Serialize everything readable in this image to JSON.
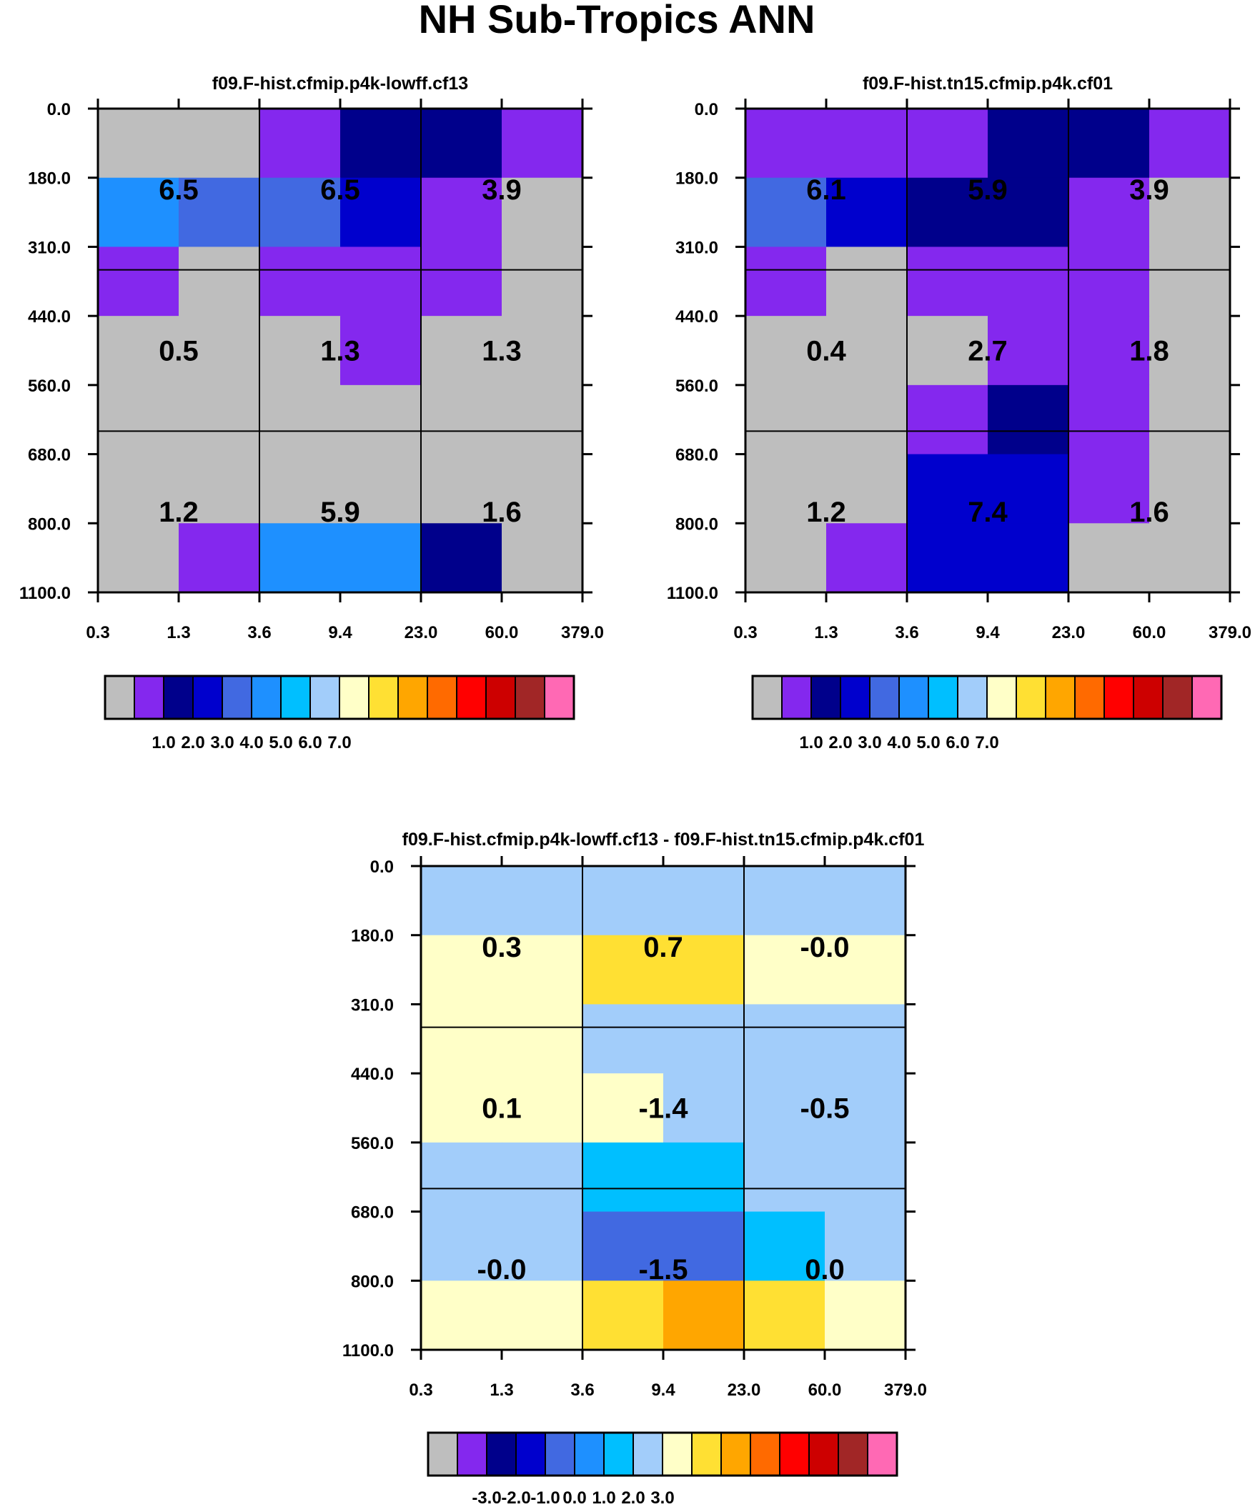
{
  "title": "NH Sub-Tropics ANN",
  "colors": {
    "palette": [
      "#bebebe",
      "#8428ee",
      "#00008b",
      "#0000cd",
      "#4169e1",
      "#1e90ff",
      "#00bfff",
      "#a2cdfa",
      "#ffffc8",
      "#ffe033",
      "#ffa600",
      "#ff6a00",
      "#ff0000",
      "#cd0000",
      "#a12626",
      "#ff69b4"
    ]
  },
  "chart_data": [
    {
      "type": "heatmap",
      "title": "f09.F-hist.cfmip.p4k-lowff.cf13",
      "x_ticks": [
        "0.3",
        "1.3",
        "3.6",
        "9.4",
        "23.0",
        "60.0",
        "379.0"
      ],
      "y_ticks": [
        "0.0",
        "180.0",
        "310.0",
        "440.0",
        "560.0",
        "680.0",
        "800.0",
        "1100.0"
      ],
      "cells": [
        [
          0,
          0,
          1,
          2,
          2,
          1
        ],
        [
          5,
          4,
          4,
          3,
          1,
          0
        ],
        [
          1,
          0,
          1,
          1,
          1,
          0
        ],
        [
          0,
          0,
          0,
          1,
          0,
          0
        ],
        [
          0,
          0,
          0,
          0,
          0,
          0
        ],
        [
          0,
          0,
          0,
          0,
          0,
          0
        ],
        [
          0,
          1,
          5,
          5,
          2,
          0
        ]
      ],
      "box_values": [
        [
          "6.5",
          "6.5",
          "3.9"
        ],
        [
          "0.5",
          "1.3",
          "1.3"
        ],
        [
          "1.2",
          "5.9",
          "1.6"
        ]
      ],
      "colorbar_labels": [
        "1.0",
        "2.0",
        "3.0",
        "4.0",
        "5.0",
        "6.0",
        "7.0"
      ]
    },
    {
      "type": "heatmap",
      "title": "f09.F-hist.tn15.cfmip.p4k.cf01",
      "x_ticks": [
        "0.3",
        "1.3",
        "3.6",
        "9.4",
        "23.0",
        "60.0",
        "379.0"
      ],
      "y_ticks": [
        "0.0",
        "180.0",
        "310.0",
        "440.0",
        "560.0",
        "680.0",
        "800.0",
        "1100.0"
      ],
      "cells": [
        [
          1,
          1,
          1,
          2,
          2,
          1
        ],
        [
          4,
          3,
          2,
          2,
          1,
          0
        ],
        [
          1,
          0,
          1,
          1,
          1,
          0
        ],
        [
          0,
          0,
          0,
          1,
          1,
          0
        ],
        [
          0,
          0,
          1,
          2,
          1,
          0
        ],
        [
          0,
          0,
          3,
          3,
          1,
          0
        ],
        [
          0,
          1,
          3,
          3,
          0,
          0
        ]
      ],
      "box_values": [
        [
          "6.1",
          "5.9",
          "3.9"
        ],
        [
          "0.4",
          "2.7",
          "1.8"
        ],
        [
          "1.2",
          "7.4",
          "1.6"
        ]
      ],
      "colorbar_labels": [
        "1.0",
        "2.0",
        "3.0",
        "4.0",
        "5.0",
        "6.0",
        "7.0"
      ]
    },
    {
      "type": "heatmap",
      "title": "f09.F-hist.cfmip.p4k-lowff.cf13 - f09.F-hist.tn15.cfmip.p4k.cf01",
      "x_ticks": [
        "0.3",
        "1.3",
        "3.6",
        "9.4",
        "23.0",
        "60.0",
        "379.0"
      ],
      "y_ticks": [
        "0.0",
        "180.0",
        "310.0",
        "440.0",
        "560.0",
        "680.0",
        "800.0",
        "1100.0"
      ],
      "cells": [
        [
          7,
          7,
          7,
          7,
          7,
          7
        ],
        [
          8,
          8,
          9,
          9,
          8,
          8
        ],
        [
          8,
          8,
          7,
          7,
          7,
          7
        ],
        [
          8,
          8,
          8,
          7,
          7,
          7
        ],
        [
          7,
          7,
          6,
          6,
          7,
          7
        ],
        [
          7,
          7,
          4,
          4,
          6,
          7
        ],
        [
          8,
          8,
          9,
          10,
          9,
          8
        ]
      ],
      "box_values": [
        [
          "0.3",
          "0.7",
          "-0.0"
        ],
        [
          "0.1",
          "-1.4",
          "-0.5"
        ],
        [
          "-0.0",
          "-1.5",
          "0.0"
        ]
      ],
      "colorbar_labels": [
        "-3.0",
        "-2.0",
        "-1.0",
        "0.0",
        "1.0",
        "2.0",
        "3.0"
      ]
    }
  ]
}
